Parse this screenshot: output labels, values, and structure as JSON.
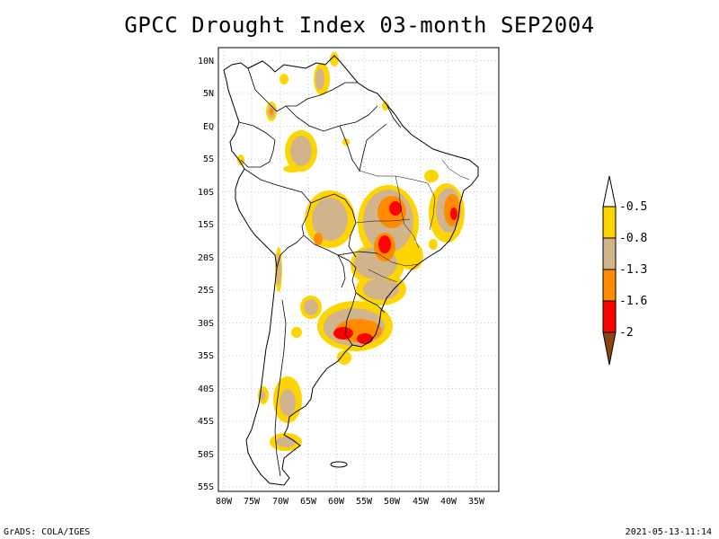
{
  "title": "GPCC Drought Index 03-month SEP2004",
  "map": {
    "lat_labels": [
      "10N",
      "5N",
      "EQ",
      "5S",
      "10S",
      "15S",
      "20S",
      "25S",
      "30S",
      "35S",
      "40S",
      "45S",
      "50S",
      "55S"
    ],
    "lon_labels": [
      "80W",
      "75W",
      "70W",
      "65W",
      "60W",
      "55W",
      "50W",
      "45W",
      "40W",
      "35W"
    ],
    "extent": {
      "lon_min": -81,
      "lon_max": -31,
      "lat_min": -56,
      "lat_max": 12
    },
    "grid": "dotted"
  },
  "legend": {
    "labels": [
      "-0.5",
      "-0.8",
      "-1.3",
      "-1.6",
      "-2"
    ],
    "colors": {
      "top_arrow": "#ffffff",
      "band_1": "#ffd500",
      "band_2": "#d2b48c",
      "band_3": "#ff8c00",
      "band_4": "#ff0000",
      "bottom_arrow": "#8b4513"
    }
  },
  "footer": {
    "left": "GrADS: COLA/IGES",
    "right": "2021-05-13-11:14"
  }
}
